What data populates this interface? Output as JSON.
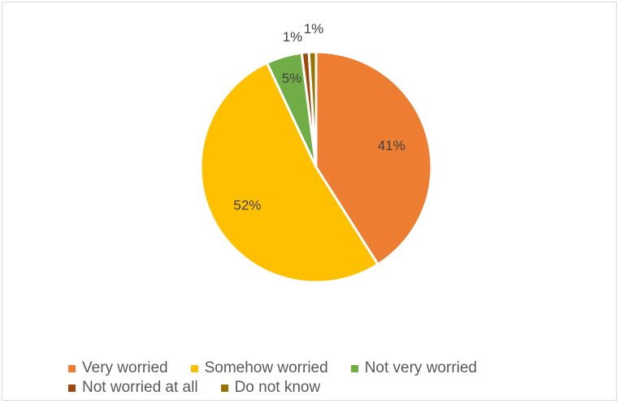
{
  "chart_data": {
    "type": "pie",
    "title": "",
    "categories": [
      "Very worried",
      "Somehow worried",
      "Not very worried",
      "Not worried at all",
      "Do not know"
    ],
    "values": [
      41,
      52,
      5,
      1,
      1
    ],
    "labels": [
      "41%",
      "52%",
      "5%",
      "1%",
      "1%"
    ],
    "colors": [
      "#ED7D31",
      "#FFC000",
      "#70AD47",
      "#9E480E",
      "#997300"
    ],
    "legend_position": "bottom",
    "start_angle_deg": 0
  }
}
